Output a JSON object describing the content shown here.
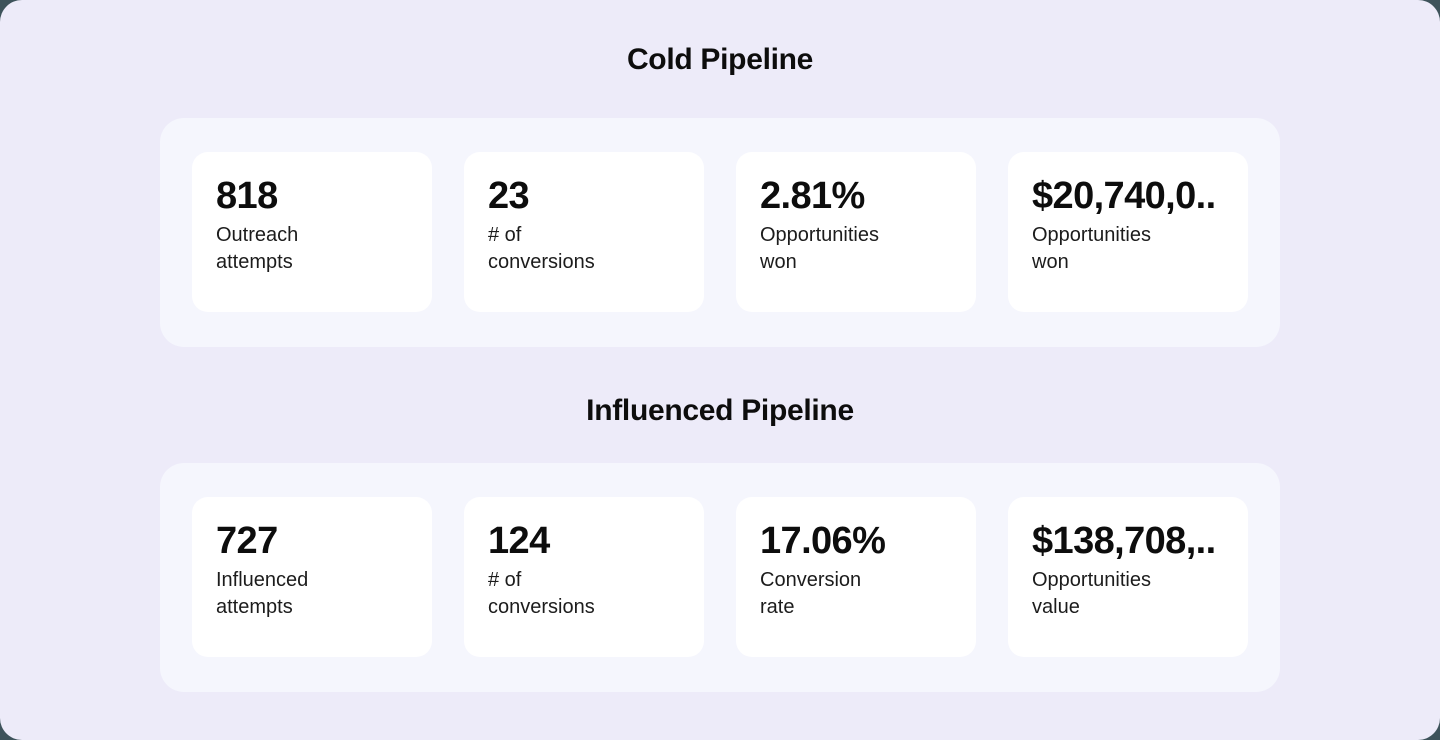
{
  "theme": {
    "page_background": "#3E535B",
    "surface_background": "#EDEBF9",
    "panel_background": "#F5F6FD",
    "card_background": "#FFFFFF",
    "value_text_color": "#0D0D0D",
    "label_text_color": "#1C1C1C"
  },
  "sections": [
    {
      "title": "Cold Pipeline",
      "cards": [
        {
          "value": "818",
          "label": [
            "Outreach",
            "attempts"
          ]
        },
        {
          "value": "23",
          "label": [
            "# of",
            "conversions"
          ]
        },
        {
          "value": "2.81%",
          "label": [
            "Opportunities",
            "won"
          ]
        },
        {
          "value": "$20,740,0..",
          "label": [
            "Opportunities",
            "won"
          ]
        }
      ]
    },
    {
      "title": "Influenced Pipeline",
      "cards": [
        {
          "value": "727",
          "label": [
            "Influenced",
            "attempts"
          ]
        },
        {
          "value": "124",
          "label": [
            "# of",
            "conversions"
          ]
        },
        {
          "value": "17.06%",
          "label": [
            "Conversion",
            "rate"
          ]
        },
        {
          "value": "$138,708,..",
          "label": [
            "Opportunities",
            "value"
          ]
        }
      ]
    }
  ]
}
